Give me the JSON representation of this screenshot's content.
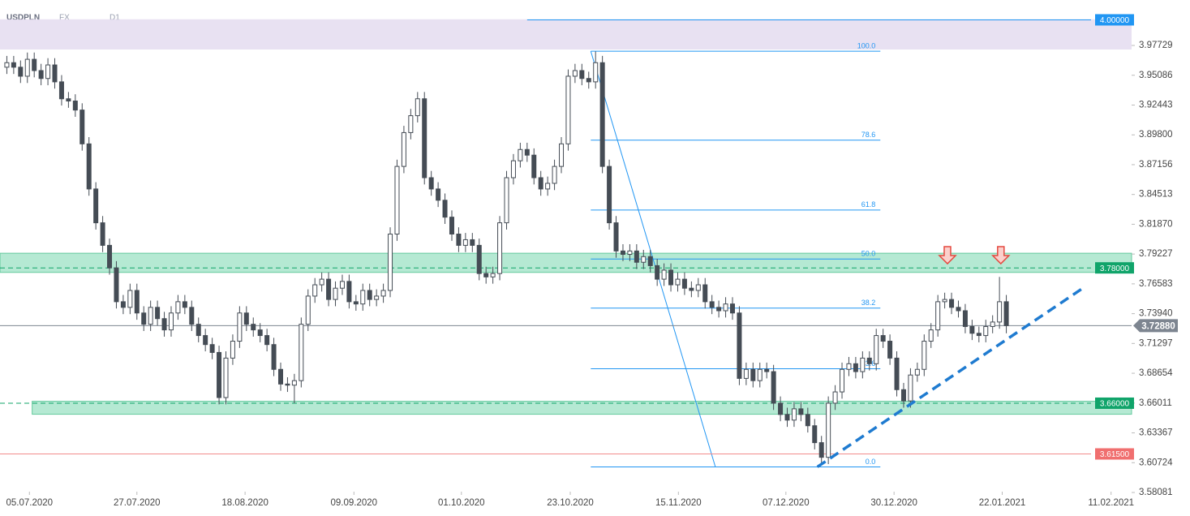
{
  "chart_data": {
    "type": "candlestick",
    "symbol": "USDPLN",
    "market": "FX",
    "timeframe": "D1",
    "ohlc": [
      [
        3.958,
        3.968,
        3.952,
        3.962
      ],
      [
        3.962,
        3.968,
        3.952,
        3.958
      ],
      [
        3.958,
        3.964,
        3.944,
        3.95
      ],
      [
        3.95,
        3.971,
        3.944,
        3.965
      ],
      [
        3.965,
        3.971,
        3.949,
        3.955
      ],
      [
        3.955,
        3.961,
        3.942,
        3.948
      ],
      [
        3.948,
        3.966,
        3.942,
        3.96
      ],
      [
        3.96,
        3.966,
        3.939,
        3.945
      ],
      [
        3.945,
        3.951,
        3.924,
        3.93
      ],
      [
        3.93,
        3.936,
        3.922,
        3.928
      ],
      [
        3.928,
        3.934,
        3.914,
        3.92
      ],
      [
        3.92,
        3.926,
        3.884,
        3.89
      ],
      [
        3.89,
        3.896,
        3.844,
        3.85
      ],
      [
        3.85,
        3.856,
        3.814,
        3.82
      ],
      [
        3.82,
        3.826,
        3.794,
        3.8
      ],
      [
        3.8,
        3.806,
        3.774,
        3.78
      ],
      [
        3.78,
        3.786,
        3.744,
        3.75
      ],
      [
        3.75,
        3.756,
        3.739,
        3.745
      ],
      [
        3.745,
        3.766,
        3.739,
        3.76
      ],
      [
        3.76,
        3.766,
        3.734,
        3.74
      ],
      [
        3.74,
        3.746,
        3.724,
        3.73
      ],
      [
        3.73,
        3.751,
        3.724,
        3.745
      ],
      [
        3.745,
        3.751,
        3.729,
        3.735
      ],
      [
        3.735,
        3.741,
        3.719,
        3.725
      ],
      [
        3.725,
        3.746,
        3.719,
        3.74
      ],
      [
        3.74,
        3.756,
        3.734,
        3.75
      ],
      [
        3.75,
        3.756,
        3.739,
        3.745
      ],
      [
        3.745,
        3.751,
        3.724,
        3.73
      ],
      [
        3.73,
        3.736,
        3.714,
        3.72
      ],
      [
        3.72,
        3.726,
        3.706,
        3.712
      ],
      [
        3.712,
        3.718,
        3.699,
        3.705
      ],
      [
        3.705,
        3.711,
        3.659,
        3.665
      ],
      [
        3.665,
        3.706,
        3.659,
        3.7
      ],
      [
        3.7,
        3.721,
        3.694,
        3.715
      ],
      [
        3.715,
        3.746,
        3.709,
        3.74
      ],
      [
        3.74,
        3.746,
        3.724,
        3.73
      ],
      [
        3.73,
        3.736,
        3.719,
        3.725
      ],
      [
        3.725,
        3.731,
        3.714,
        3.72
      ],
      [
        3.72,
        3.726,
        3.706,
        3.712
      ],
      [
        3.712,
        3.718,
        3.684,
        3.69
      ],
      [
        3.69,
        3.696,
        3.671,
        3.677
      ],
      [
        3.677,
        3.683,
        3.67,
        3.676
      ],
      [
        3.676,
        3.686,
        3.66,
        3.68
      ],
      [
        3.68,
        3.736,
        3.674,
        3.73
      ],
      [
        3.73,
        3.761,
        3.724,
        3.755
      ],
      [
        3.755,
        3.771,
        3.749,
        3.765
      ],
      [
        3.765,
        3.776,
        3.759,
        3.77
      ],
      [
        3.77,
        3.776,
        3.746,
        3.752
      ],
      [
        3.752,
        3.768,
        3.746,
        3.762
      ],
      [
        3.762,
        3.774,
        3.756,
        3.768
      ],
      [
        3.768,
        3.774,
        3.744,
        3.75
      ],
      [
        3.75,
        3.756,
        3.742,
        3.748
      ],
      [
        3.748,
        3.766,
        3.742,
        3.76
      ],
      [
        3.76,
        3.766,
        3.746,
        3.752
      ],
      [
        3.752,
        3.761,
        3.746,
        3.755
      ],
      [
        3.755,
        3.766,
        3.749,
        3.76
      ],
      [
        3.76,
        3.816,
        3.754,
        3.81
      ],
      [
        3.81,
        3.876,
        3.804,
        3.87
      ],
      [
        3.87,
        3.906,
        3.864,
        3.9
      ],
      [
        3.9,
        3.921,
        3.894,
        3.915
      ],
      [
        3.915,
        3.936,
        3.909,
        3.93
      ],
      [
        3.93,
        3.936,
        3.854,
        3.86
      ],
      [
        3.86,
        3.866,
        3.844,
        3.85
      ],
      [
        3.85,
        3.856,
        3.834,
        3.84
      ],
      [
        3.84,
        3.846,
        3.819,
        3.825
      ],
      [
        3.825,
        3.831,
        3.804,
        3.81
      ],
      [
        3.81,
        3.816,
        3.794,
        3.8
      ],
      [
        3.8,
        3.811,
        3.794,
        3.805
      ],
      [
        3.805,
        3.811,
        3.794,
        3.8
      ],
      [
        3.8,
        3.806,
        3.769,
        3.775
      ],
      [
        3.775,
        3.781,
        3.766,
        3.772
      ],
      [
        3.772,
        3.781,
        3.766,
        3.775
      ],
      [
        3.775,
        3.826,
        3.769,
        3.82
      ],
      [
        3.82,
        3.866,
        3.814,
        3.86
      ],
      [
        3.86,
        3.881,
        3.854,
        3.875
      ],
      [
        3.875,
        3.891,
        3.869,
        3.885
      ],
      [
        3.885,
        3.891,
        3.874,
        3.88
      ],
      [
        3.88,
        3.886,
        3.854,
        3.86
      ],
      [
        3.86,
        3.866,
        3.844,
        3.85
      ],
      [
        3.85,
        3.861,
        3.844,
        3.855
      ],
      [
        3.855,
        3.876,
        3.849,
        3.87
      ],
      [
        3.87,
        3.896,
        3.864,
        3.89
      ],
      [
        3.89,
        3.956,
        3.884,
        3.95
      ],
      [
        3.95,
        3.961,
        3.944,
        3.955
      ],
      [
        3.955,
        3.961,
        3.942,
        3.948
      ],
      [
        3.948,
        3.954,
        3.939,
        3.945
      ],
      [
        3.945,
        3.972,
        3.939,
        3.962
      ],
      [
        3.962,
        3.968,
        3.864,
        3.87
      ],
      [
        3.87,
        3.876,
        3.814,
        3.82
      ],
      [
        3.82,
        3.826,
        3.789,
        3.795
      ],
      [
        3.795,
        3.801,
        3.786,
        3.792
      ],
      [
        3.792,
        3.801,
        3.786,
        3.795
      ],
      [
        3.795,
        3.801,
        3.779,
        3.785
      ],
      [
        3.785,
        3.796,
        3.779,
        3.79
      ],
      [
        3.79,
        3.796,
        3.776,
        3.782
      ],
      [
        3.782,
        3.788,
        3.764,
        3.77
      ],
      [
        3.77,
        3.784,
        3.764,
        3.778
      ],
      [
        3.778,
        3.784,
        3.759,
        3.765
      ],
      [
        3.765,
        3.776,
        3.759,
        3.77
      ],
      [
        3.77,
        3.776,
        3.756,
        3.762
      ],
      [
        3.762,
        3.768,
        3.754,
        3.76
      ],
      [
        3.76,
        3.771,
        3.754,
        3.765
      ],
      [
        3.765,
        3.771,
        3.744,
        3.75
      ],
      [
        3.75,
        3.756,
        3.739,
        3.745
      ],
      [
        3.745,
        3.751,
        3.736,
        3.742
      ],
      [
        3.742,
        3.754,
        3.736,
        3.748
      ],
      [
        3.748,
        3.754,
        3.734,
        3.74
      ],
      [
        3.74,
        3.746,
        3.676,
        3.682
      ],
      [
        3.682,
        3.696,
        3.676,
        3.69
      ],
      [
        3.69,
        3.696,
        3.674,
        3.68
      ],
      [
        3.68,
        3.696,
        3.674,
        3.69
      ],
      [
        3.69,
        3.696,
        3.682,
        3.688
      ],
      [
        3.688,
        3.694,
        3.654,
        3.66
      ],
      [
        3.66,
        3.666,
        3.644,
        3.65
      ],
      [
        3.65,
        3.656,
        3.639,
        3.645
      ],
      [
        3.645,
        3.661,
        3.639,
        3.655
      ],
      [
        3.655,
        3.661,
        3.644,
        3.65
      ],
      [
        3.65,
        3.656,
        3.634,
        3.64
      ],
      [
        3.64,
        3.646,
        3.619,
        3.625
      ],
      [
        3.625,
        3.631,
        3.606,
        3.612
      ],
      [
        3.612,
        3.666,
        3.606,
        3.66
      ],
      [
        3.66,
        3.676,
        3.654,
        3.67
      ],
      [
        3.67,
        3.696,
        3.664,
        3.69
      ],
      [
        3.69,
        3.701,
        3.684,
        3.695
      ],
      [
        3.695,
        3.701,
        3.682,
        3.688
      ],
      [
        3.688,
        3.706,
        3.682,
        3.7
      ],
      [
        3.7,
        3.706,
        3.689,
        3.695
      ],
      [
        3.695,
        3.726,
        3.689,
        3.72
      ],
      [
        3.72,
        3.726,
        3.709,
        3.715
      ],
      [
        3.715,
        3.721,
        3.694,
        3.7
      ],
      [
        3.7,
        3.706,
        3.666,
        3.672
      ],
      [
        3.672,
        3.678,
        3.656,
        3.662
      ],
      [
        3.662,
        3.691,
        3.656,
        3.685
      ],
      [
        3.685,
        3.696,
        3.679,
        3.69
      ],
      [
        3.69,
        3.721,
        3.684,
        3.715
      ],
      [
        3.715,
        3.731,
        3.709,
        3.725
      ],
      [
        3.725,
        3.756,
        3.719,
        3.75
      ],
      [
        3.75,
        3.758,
        3.744,
        3.752
      ],
      [
        3.752,
        3.758,
        3.739,
        3.745
      ],
      [
        3.745,
        3.751,
        3.736,
        3.742
      ],
      [
        3.742,
        3.748,
        3.722,
        3.728
      ],
      [
        3.728,
        3.734,
        3.716,
        3.722
      ],
      [
        3.722,
        3.728,
        3.714,
        3.72
      ],
      [
        3.72,
        3.734,
        3.714,
        3.728
      ],
      [
        3.728,
        3.738,
        3.722,
        3.732
      ],
      [
        3.732,
        3.772,
        3.726,
        3.75
      ],
      [
        3.75,
        3.756,
        3.722,
        3.7288
      ]
    ],
    "xlim": [
      -1,
      164.3
    ],
    "xticks": [
      {
        "value": 3.3,
        "label": "05.07.2020"
      },
      {
        "value": 19,
        "label": "27.07.2020"
      },
      {
        "value": 34.8,
        "label": "18.08.2020"
      },
      {
        "value": 50.7,
        "label": "09.09.2020"
      },
      {
        "value": 66.4,
        "label": "01.10.2020"
      },
      {
        "value": 82.3,
        "label": "23.10.2020"
      },
      {
        "value": 98.1,
        "label": "15.11.2020"
      },
      {
        "value": 113.8,
        "label": "07.12.2020"
      },
      {
        "value": 129.6,
        "label": "30.12.2020"
      },
      {
        "value": 145.4,
        "label": "22.01.2021"
      },
      {
        "value": 161.3,
        "label": "11.02.2021"
      }
    ],
    "ylim": [
      3.5693,
      4.0176
    ],
    "yticks": [
      3.97729,
      3.95086,
      3.92443,
      {
        "value": 3.898,
        "label": "3.89800"
      },
      3.87156,
      3.84513,
      {
        "value": 3.8187,
        "label": "3.81870"
      },
      3.79227,
      3.76583,
      {
        "value": 3.7394,
        "label": "3.73940"
      },
      3.71297,
      3.68654,
      3.66011,
      3.63367,
      3.60724,
      3.58081
    ],
    "zones": [
      {
        "low": 3.9737,
        "high": 4.0005,
        "color": "#e4dcf0"
      },
      {
        "low": 3.776,
        "high": 3.793,
        "color": "#a9e6cc"
      },
      {
        "low": 3.6502,
        "high": 3.6617,
        "color": "#a9e6cc",
        "from": 3.7
      }
    ],
    "levels": [
      {
        "value": 4.0,
        "label": "4.00000",
        "color": "#2196f3",
        "style": "solid",
        "from": 76
      },
      {
        "value": 3.78,
        "label": "3.78000",
        "color": "#10a46a",
        "style": "dashed"
      },
      {
        "value": 3.66,
        "label": "3.66000",
        "color": "#10a46a",
        "style": "dashed"
      },
      {
        "value": 3.615,
        "label": "3.61500",
        "color": "#f28b8b",
        "style": "solid"
      },
      {
        "value": 3.7288,
        "label": "3.72880",
        "color": "#7d8590",
        "style": "current"
      }
    ],
    "fib": {
      "high": 3.9722,
      "low": 3.6035,
      "x": [
        85.3,
        127.6
      ],
      "diagonal_x": [
        85.3,
        103.5
      ],
      "color": "#2196f3",
      "levels": [
        {
          "value": 100,
          "label": "100.0"
        },
        {
          "value": 78.6,
          "label": "78.6"
        },
        {
          "value": 61.8,
          "label": "61.8"
        },
        {
          "value": 50,
          "label": "50.0"
        },
        {
          "value": 38.2,
          "label": "38.2"
        },
        {
          "value": 23.6,
          "label": "23.6"
        },
        {
          "value": 0,
          "label": "0.0"
        }
      ]
    },
    "trendline": {
      "x": [
        118.4,
        157.2
      ],
      "y": [
        3.6035,
        3.7621
      ],
      "color": "#1f7bd0"
    },
    "arrows": {
      "x": [
        137.4,
        145.2
      ],
      "y": 3.7837,
      "color": "#e5483f"
    }
  }
}
